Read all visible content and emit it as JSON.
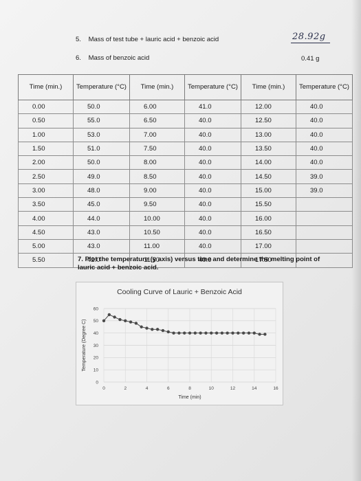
{
  "questions": {
    "q5": {
      "number": "5.",
      "text": "Mass of test tube + lauric acid + benzoic acid",
      "answer": "28.92g"
    },
    "q6": {
      "number": "6.",
      "text": "Mass of benzoic acid",
      "answer": "0.41 g"
    },
    "q7": {
      "number": "7.",
      "text": "Plot the temperature (y axis) versus time and determine the melting point of lauric acid + benzoic acid."
    }
  },
  "table": {
    "headers": [
      "Time (min.)",
      "Temperature (°C)",
      "Time (min.)",
      "Temperature (°C)",
      "Time (min.)",
      "Temperature (°C)"
    ],
    "rows": [
      [
        "0.00",
        "50.0",
        "6.00",
        "41.0",
        "12.00",
        "40.0"
      ],
      [
        "0.50",
        "55.0",
        "6.50",
        "40.0",
        "12.50",
        "40.0"
      ],
      [
        "1.00",
        "53.0",
        "7.00",
        "40.0",
        "13.00",
        "40.0"
      ],
      [
        "1.50",
        "51.0",
        "7.50",
        "40.0",
        "13.50",
        "40.0"
      ],
      [
        "2.00",
        "50.0",
        "8.00",
        "40.0",
        "14.00",
        "40.0"
      ],
      [
        "2.50",
        "49.0",
        "8.50",
        "40.0",
        "14.50",
        "39.0"
      ],
      [
        "3.00",
        "48.0",
        "9.00",
        "40.0",
        "15.00",
        "39.0"
      ],
      [
        "3.50",
        "45.0",
        "9.50",
        "40.0",
        "15.50",
        ""
      ],
      [
        "4.00",
        "44.0",
        "10.00",
        "40.0",
        "16.00",
        ""
      ],
      [
        "4.50",
        "43.0",
        "10.50",
        "40.0",
        "16.50",
        ""
      ],
      [
        "5.00",
        "43.0",
        "11.00",
        "40.0",
        "17.00",
        ""
      ],
      [
        "5.50",
        "42.0",
        "11.50",
        "40.0",
        "17.50",
        ""
      ]
    ]
  },
  "chart_data": {
    "type": "line",
    "title": "Cooling Curve of Lauric + Benzoic Acid",
    "xlabel": "Time (min)",
    "ylabel": "Temperature (Degree C)",
    "xlim": [
      0,
      16
    ],
    "ylim": [
      0,
      60
    ],
    "xticks": [
      0,
      2,
      4,
      6,
      8,
      10,
      12,
      14,
      16
    ],
    "yticks": [
      0,
      10,
      20,
      30,
      40,
      50,
      60
    ],
    "grid": true,
    "marker_color": "#4a4a4a",
    "x": [
      0,
      0.5,
      1,
      1.5,
      2,
      2.5,
      3,
      3.5,
      4,
      4.5,
      5,
      5.5,
      6,
      6.5,
      7,
      7.5,
      8,
      8.5,
      9,
      9.5,
      10,
      10.5,
      11,
      11.5,
      12,
      12.5,
      13,
      13.5,
      14,
      14.5,
      15
    ],
    "y": [
      50,
      55,
      53,
      51,
      50,
      49,
      48,
      45,
      44,
      43,
      43,
      42,
      41,
      40,
      40,
      40,
      40,
      40,
      40,
      40,
      40,
      40,
      40,
      40,
      40,
      40,
      40,
      40,
      40,
      39,
      39
    ]
  }
}
